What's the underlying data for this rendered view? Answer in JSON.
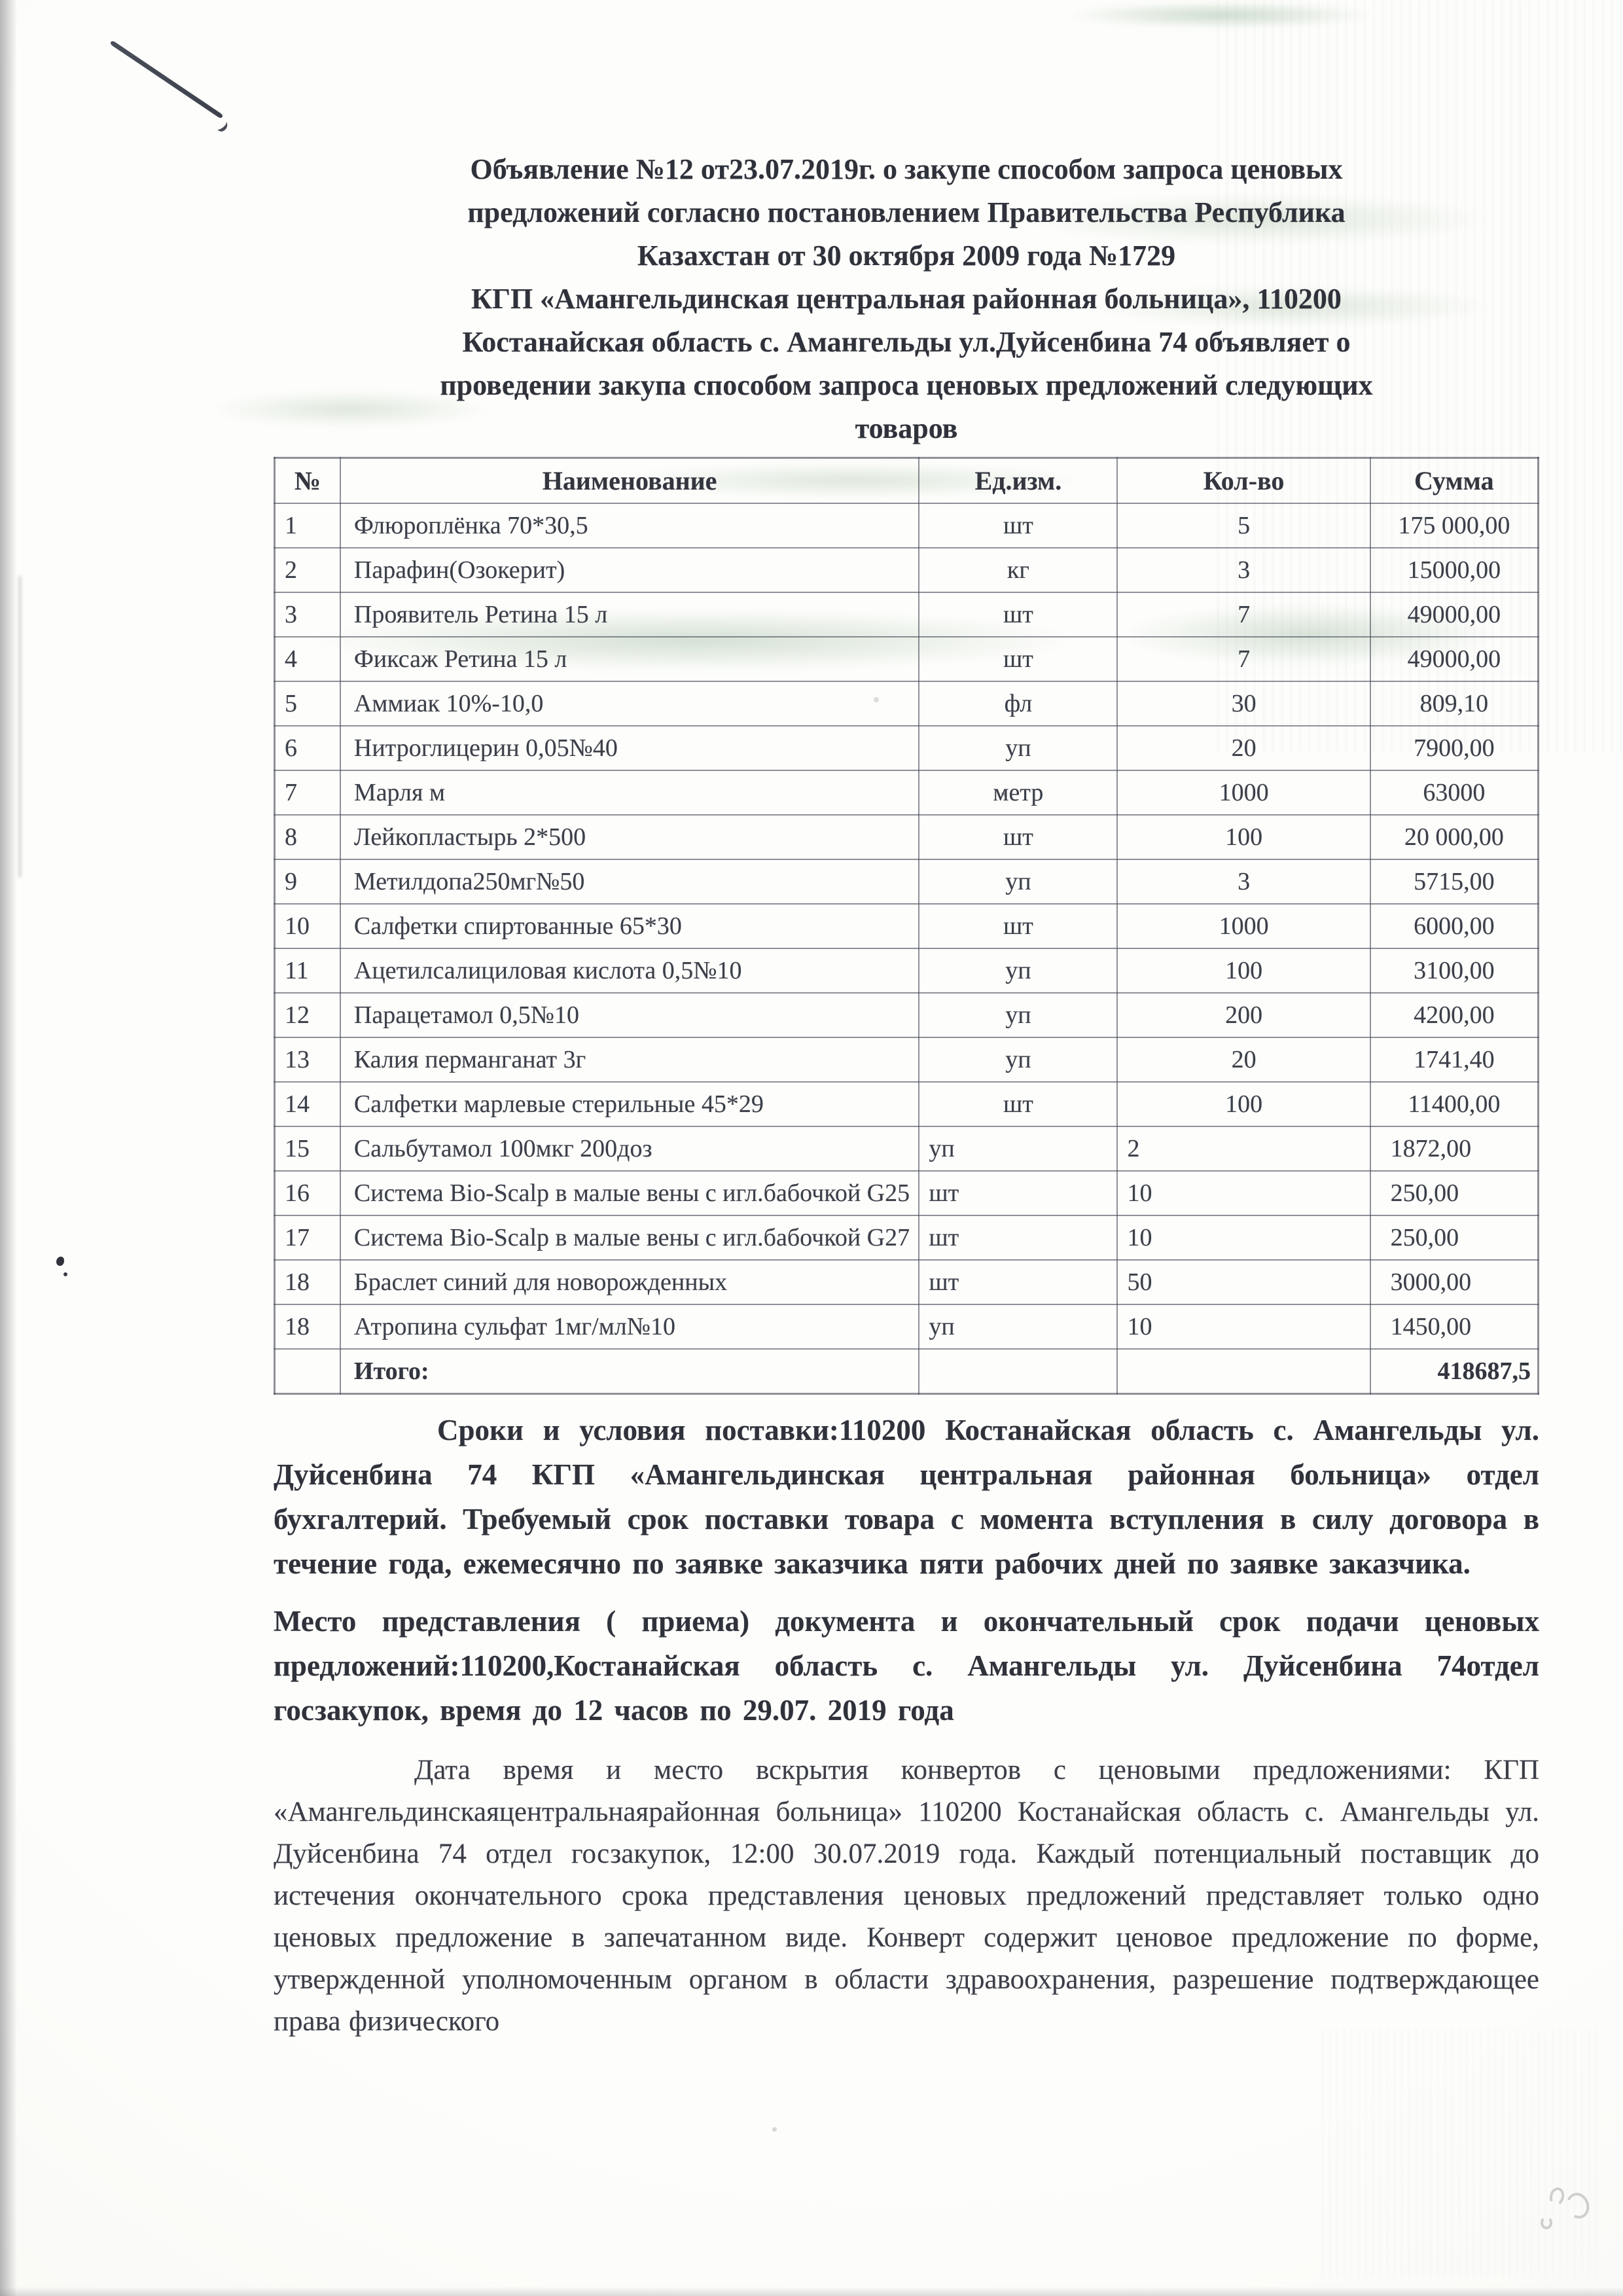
{
  "title": {
    "lines": [
      "Объявление №12 от23.07.2019г. о закупе способом запроса ценовых",
      "предложений согласно постановлением Правительства Республика",
      "Казахстан от 30 октября 2009 года №1729",
      "КГП «Амангельдинская центральная районная больница», 110200",
      "Костанайская область  с. Амангельды ул.Дуйсенбина 74 объявляет о",
      "проведении закупа способом запроса ценовых предложений следующих",
      "товаров"
    ]
  },
  "table": {
    "headers": [
      "№",
      "Наименование",
      "Ед.изм.",
      "Кол-во",
      "Сумма"
    ],
    "rows": [
      {
        "num": "1",
        "name": "Флюроплёнка 70*30,5",
        "unit": "шт",
        "qty": "5",
        "sum": "175 000,00"
      },
      {
        "num": "2",
        "name": "Парафин(Озокерит)",
        "unit": "кг",
        "qty": "3",
        "sum": "15000,00"
      },
      {
        "num": "3",
        "name": "Проявитель Ретина 15 л",
        "unit": "шт",
        "qty": "7",
        "sum": "49000,00"
      },
      {
        "num": "4",
        "name": "Фиксаж Ретина 15 л",
        "unit": "шт",
        "qty": "7",
        "sum": "49000,00"
      },
      {
        "num": "5",
        "name": "Аммиак 10%-10,0",
        "unit": "фл",
        "qty": "30",
        "sum": "809,10"
      },
      {
        "num": "6",
        "name": "Нитроглицерин 0,05№40",
        "unit": "уп",
        "qty": "20",
        "sum": "7900,00"
      },
      {
        "num": "7",
        "name": "Марля м",
        "unit": "метр",
        "qty": "1000",
        "sum": "63000"
      },
      {
        "num": "8",
        "name": "Лейкопластырь 2*500",
        "unit": "шт",
        "qty": "100",
        "sum": "20 000,00"
      },
      {
        "num": "9",
        "name": "Метилдопа250мг№50",
        "unit": "уп",
        "qty": "3",
        "sum": "5715,00"
      },
      {
        "num": "10",
        "name": "Салфетки спиртованные 65*30",
        "unit": "шт",
        "qty": "1000",
        "sum": "6000,00"
      },
      {
        "num": "11",
        "name": "Ацетилсалициловая кислота 0,5№10",
        "unit": "уп",
        "qty": "100",
        "sum": "3100,00"
      },
      {
        "num": "12",
        "name": "Парацетамол 0,5№10",
        "unit": "уп",
        "qty": "200",
        "sum": "4200,00"
      },
      {
        "num": "13",
        "name": "Калия перманганат 3г",
        "unit": "уп",
        "qty": "20",
        "sum": "1741,40"
      },
      {
        "num": "14",
        "name": "Салфетки марлевые стерильные 45*29",
        "unit": "шт",
        "qty": "100",
        "sum": "11400,00"
      },
      {
        "num": "15",
        "name": "Сальбутамол 100мкг 200доз",
        "unit": "уп",
        "qty": "2",
        "sum": "1872,00"
      },
      {
        "num": "16",
        "name": "Система Bio-Scalp в малые вены с игл.бабочкой G25",
        "unit": "шт",
        "qty": "10",
        "sum": "250,00"
      },
      {
        "num": "17",
        "name": "Система Bio-Scalp в малые вены с игл.бабочкой G27",
        "unit": "шт",
        "qty": "10",
        "sum": "250,00"
      },
      {
        "num": "18",
        "name": "Браслет синий для новорожденных",
        "unit": "шт",
        "qty": "50",
        "sum": "3000,00"
      },
      {
        "num": "18",
        "name": "Атропина сульфат 1мг/мл№10",
        "unit": "уп",
        "qty": "10",
        "sum": "1450,00"
      }
    ],
    "total_label": "Итого:",
    "total_value": "418687,5"
  },
  "paragraphs": {
    "delivery_1": "Сроки и условия поставки:110200 Костанайская область с. Амангельды ул. Дуйсенбина 74 КГП «Амангельдинская центральная районная больница» отдел бухгалтерий. Требуемый срок поставки товара с момента вступления в силу договора в течение года, ежемесячно по заявке заказчика пяти рабочих дней по заявке заказчика.",
    "delivery_2": "Место представления ( приема) документа  и окончательный срок подачи ценовых предложений:110200,Костанайская область с. Амангельды ул. Дуйсенбина 74отдел госзакупок,  время до 12 часов по 29.07. 2019 года",
    "opening": "Дата время  и место  вскрытия конвертов с ценовыми предложениями: КГП «Амангельдинскаяцентральнаярайонная больница» 110200 Костанайская область  с. Амангельды  ул. Дуйсенбина 74 отдел госзакупок, 12:00 30.07.2019 года. Каждый потенциальный поставщик до истечения окончательного срока представления ценовых предложений представляет только одно ценовых предложение в запечатанном виде. Конверт содержит ценовое предложение по форме, утвержденной уполномоченным органом в области здравоохранения, разрешение подтверждающее права физического"
  }
}
